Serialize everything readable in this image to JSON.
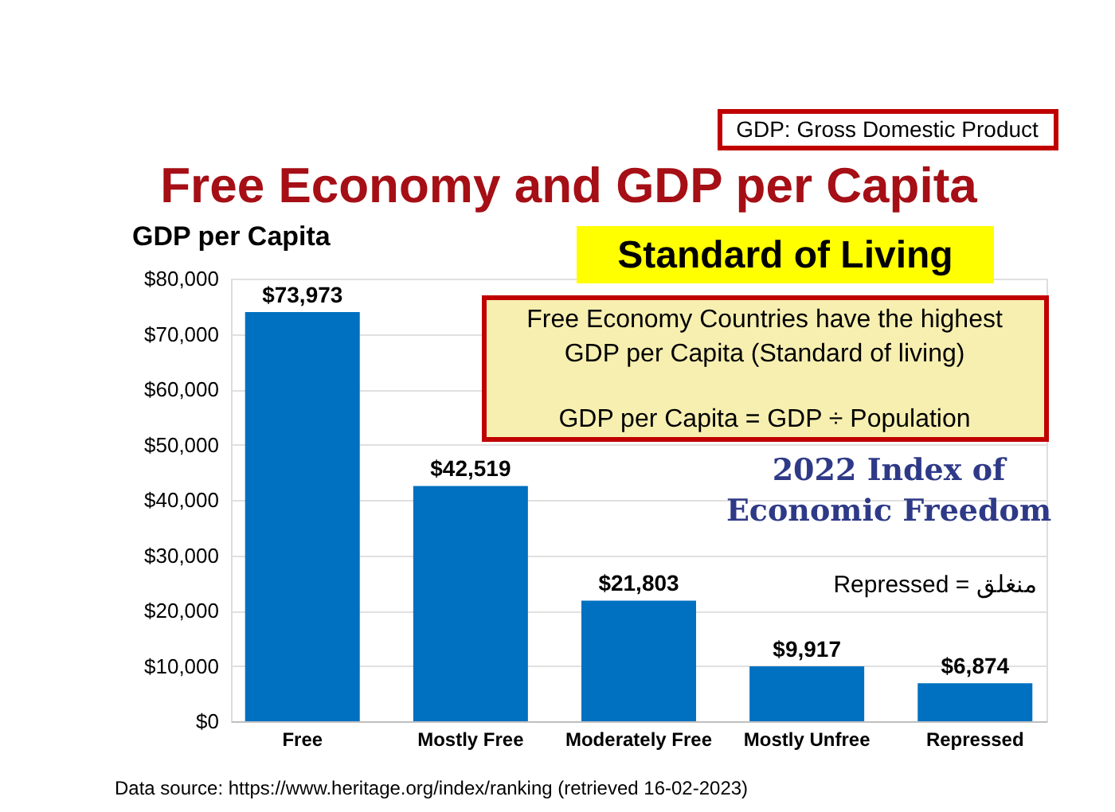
{
  "chart_data": {
    "type": "bar",
    "title": "Free Economy and GDP per Capita",
    "ylabel": "GDP per Capita",
    "categories": [
      "Free",
      "Mostly Free",
      "Moderately Free",
      "Mostly Unfree",
      "Repressed"
    ],
    "values": [
      73973,
      42519,
      21803,
      9917,
      6874
    ],
    "value_labels": [
      "$73,973",
      "$42,519",
      "$21,803",
      "$9,917",
      "$6,874"
    ],
    "color": "#0070c0",
    "ylim": [
      0,
      80000
    ],
    "yticks": [
      {
        "value": 0,
        "label": "$0"
      },
      {
        "value": 10000,
        "label": "$10,000"
      },
      {
        "value": 20000,
        "label": "$20,000"
      },
      {
        "value": 30000,
        "label": "$30,000"
      },
      {
        "value": 40000,
        "label": "$40,000"
      },
      {
        "value": 50000,
        "label": "$50,000"
      },
      {
        "value": 60000,
        "label": "$60,000"
      },
      {
        "value": 70000,
        "label": "$70,000"
      },
      {
        "value": 80000,
        "label": "$80,000"
      }
    ],
    "grid": "y",
    "annotations": [
      "GDP: Gross Domestic Product",
      "Standard of Living",
      "Free Economy Countries have the highest GDP per Capita (Standard of living)",
      "GDP per Capita = GDP ÷ Population",
      "2022 Index of Economic Freedom",
      "Repressed = منغلق",
      "Data source: https://www.heritage.org/index/ranking (retrieved 16-02-2023)"
    ]
  }
}
